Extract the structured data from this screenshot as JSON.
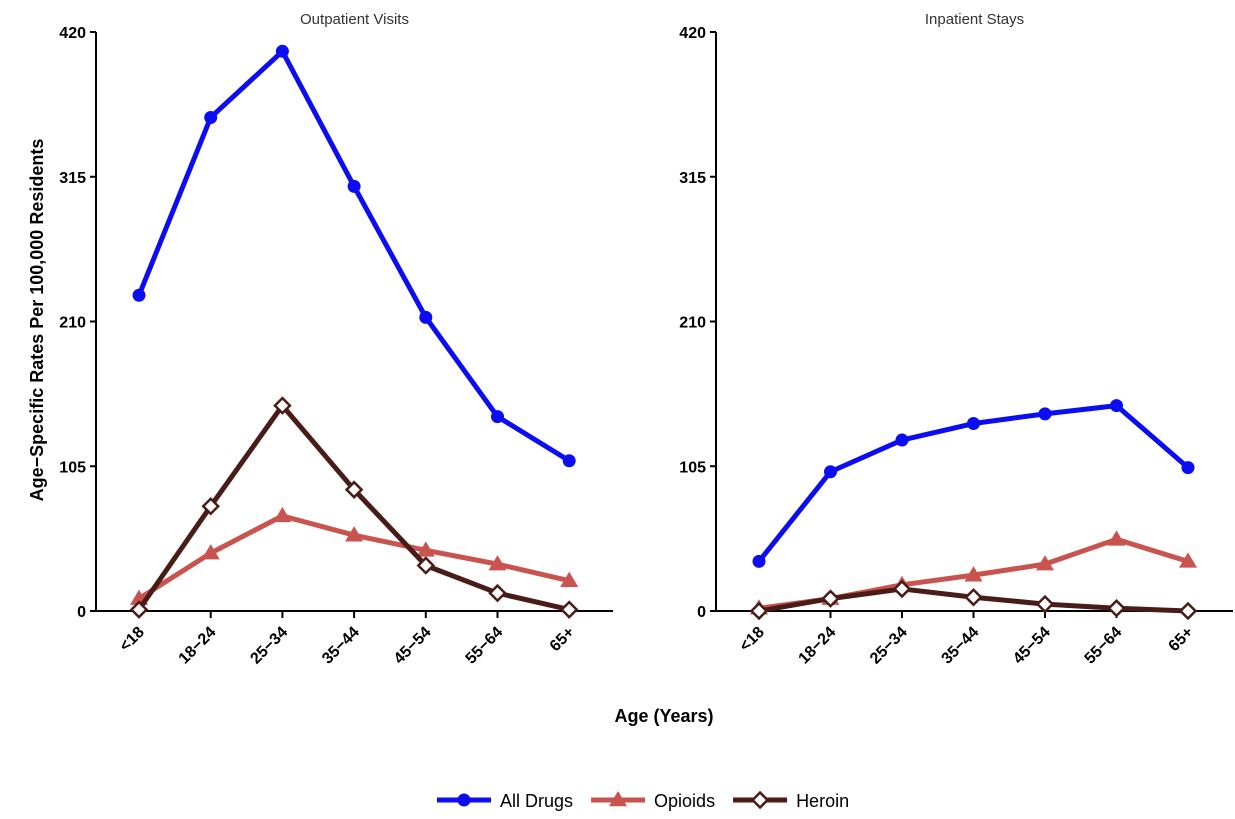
{
  "figure": {
    "ylabel": "Age−Specific Rates Per 100,000 Residents",
    "xlabel": "Age (Years)",
    "legend_position": "bottom"
  },
  "colors": {
    "All Drugs": "#0d0df2",
    "Opioids": "#c9534f",
    "Heroin": "#4a1c17"
  },
  "legend": [
    {
      "name": "All Drugs",
      "marker": "circle-filled"
    },
    {
      "name": "Opioids",
      "marker": "triangle-filled"
    },
    {
      "name": "Heroin",
      "marker": "diamond-open"
    }
  ],
  "chart_data": [
    {
      "type": "line",
      "title": "Outpatient Visits",
      "categories": [
        "<18",
        "18−24",
        "25−34",
        "35−44",
        "45−54",
        "55−64",
        "65+"
      ],
      "ylim": [
        0,
        420
      ],
      "yticks": [
        0,
        105,
        210,
        315,
        420
      ],
      "grid": false,
      "series": [
        {
          "name": "All Drugs",
          "values": [
            229,
            358,
            406,
            308,
            213,
            141,
            109
          ]
        },
        {
          "name": "Opioids",
          "values": [
            9,
            42,
            69,
            55,
            44,
            34,
            22
          ]
        },
        {
          "name": "Heroin",
          "values": [
            1,
            76,
            149,
            88,
            33,
            13,
            1
          ]
        }
      ]
    },
    {
      "type": "line",
      "title": "Inpatient Stays",
      "categories": [
        "<18",
        "18−24",
        "25−34",
        "35−44",
        "45−54",
        "55−64",
        "65+"
      ],
      "ylim": [
        0,
        420
      ],
      "yticks": [
        0,
        105,
        210,
        315,
        420
      ],
      "grid": false,
      "series": [
        {
          "name": "All Drugs",
          "values": [
            36,
            101,
            124,
            136,
            143,
            149,
            104
          ]
        },
        {
          "name": "Opioids",
          "values": [
            2,
            9,
            19,
            26,
            34,
            52,
            36
          ]
        },
        {
          "name": "Heroin",
          "values": [
            0,
            9,
            16,
            10,
            5,
            2,
            0
          ]
        }
      ]
    }
  ]
}
